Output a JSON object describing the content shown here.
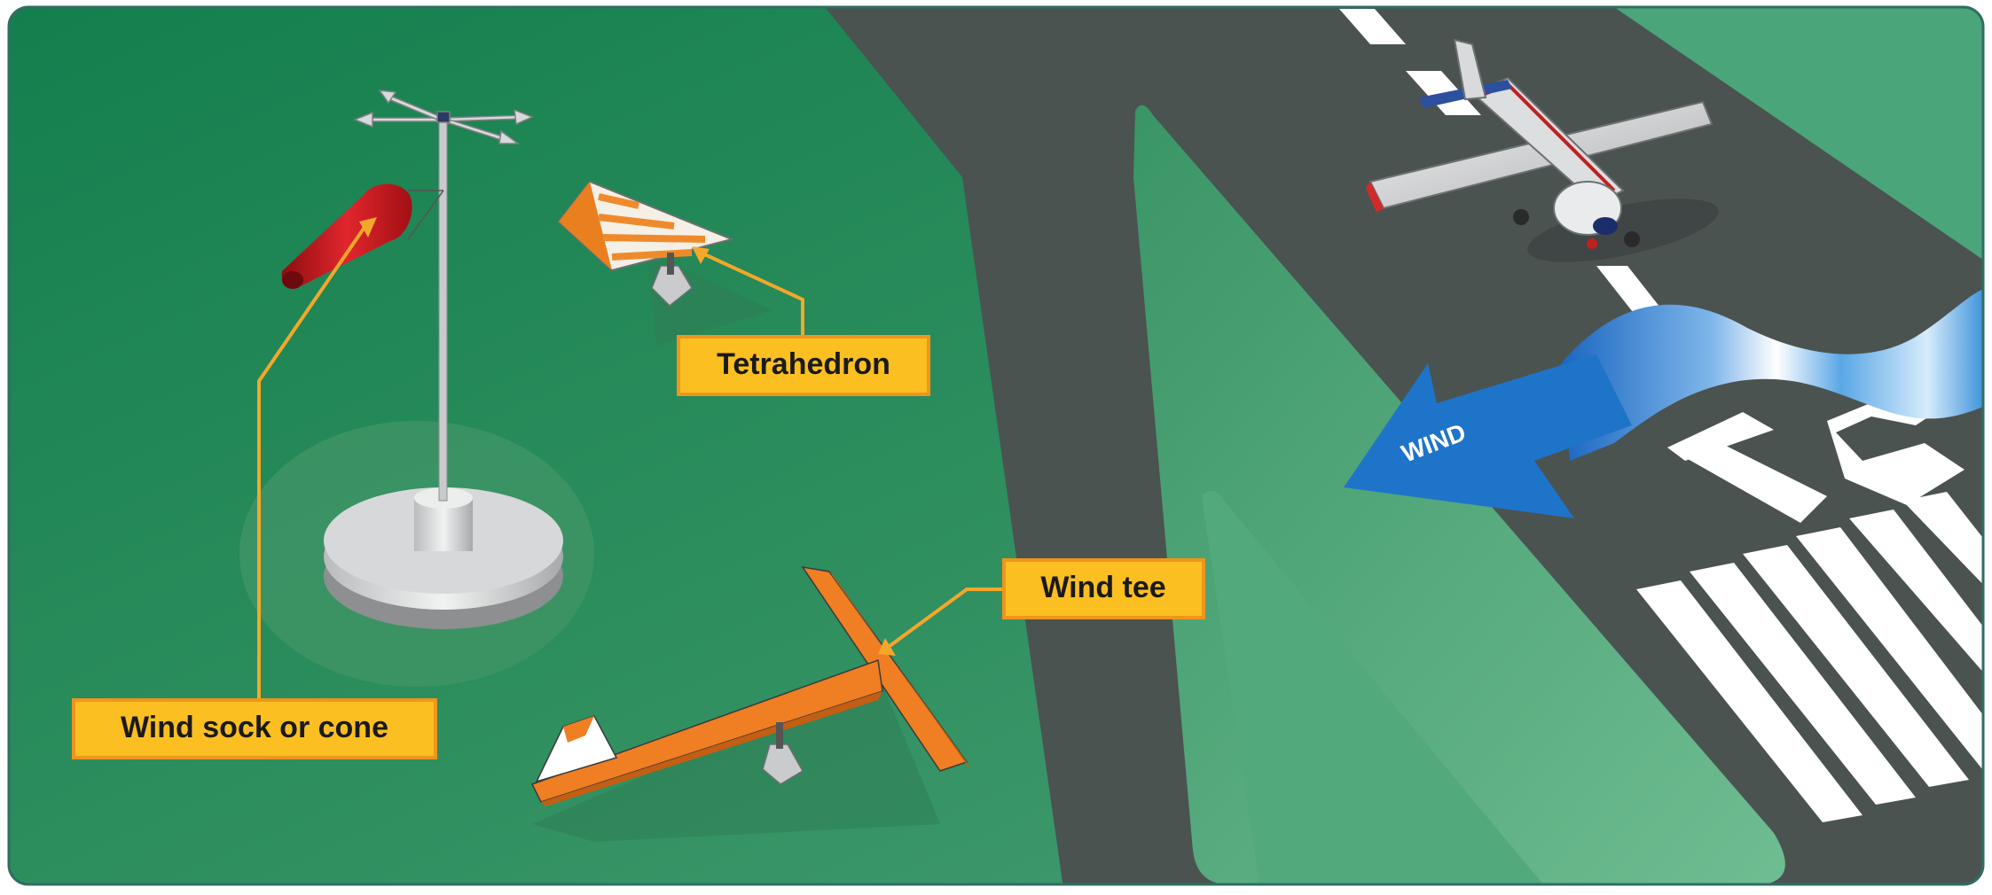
{
  "labels": {
    "wind_sock": "Wind sock or cone",
    "tetrahedron": "Tetrahedron",
    "wind_tee": "Wind tee",
    "wind": "WIND",
    "runway_number": "16"
  },
  "colors": {
    "grass": "#3f9668",
    "runway": "#4a5350",
    "callout_box": "#fbbf22",
    "callout_border": "#f0951c",
    "leader_line": "#f4a72a",
    "wind_sock": "#c8161d",
    "tee_orange": "#f07e23",
    "wind_arrow": "#1e74c9"
  }
}
